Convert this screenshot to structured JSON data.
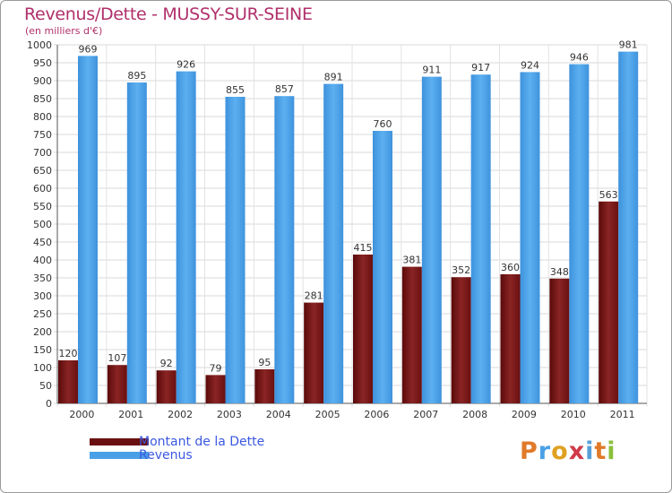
{
  "header": {
    "title": "Revenus/Dette - MUSSY-SUR-SEINE",
    "subtitle": "(en milliers d'€)"
  },
  "legend": {
    "items": [
      {
        "label": "Montant de la Dette",
        "color": "#7a1a1a"
      },
      {
        "label": "Revenus",
        "color": "#4aa0e6"
      }
    ]
  },
  "logo": {
    "text": "Proxiti",
    "letter_colors": [
      "#e07a2a",
      "#4aa0e6",
      "#e0a020",
      "#d03a4a",
      "#5aa0d8",
      "#e07a2a",
      "#8abf3a"
    ]
  },
  "chart_data": {
    "type": "bar",
    "categories": [
      "2000",
      "2001",
      "2002",
      "2003",
      "2004",
      "2005",
      "2006",
      "2007",
      "2008",
      "2009",
      "2010",
      "2011"
    ],
    "series": [
      {
        "name": "Montant de la Dette",
        "values": [
          120,
          107,
          92,
          79,
          95,
          281,
          415,
          381,
          352,
          360,
          348,
          563
        ],
        "color": "#7a1a1a"
      },
      {
        "name": "Revenus",
        "values": [
          969,
          895,
          926,
          855,
          857,
          891,
          760,
          911,
          917,
          924,
          946,
          981
        ],
        "color": "#4aa0e6"
      }
    ],
    "ylim": [
      0,
      1000
    ],
    "ytick_step": 50,
    "grid": true,
    "legend_position": "bottom-left"
  }
}
